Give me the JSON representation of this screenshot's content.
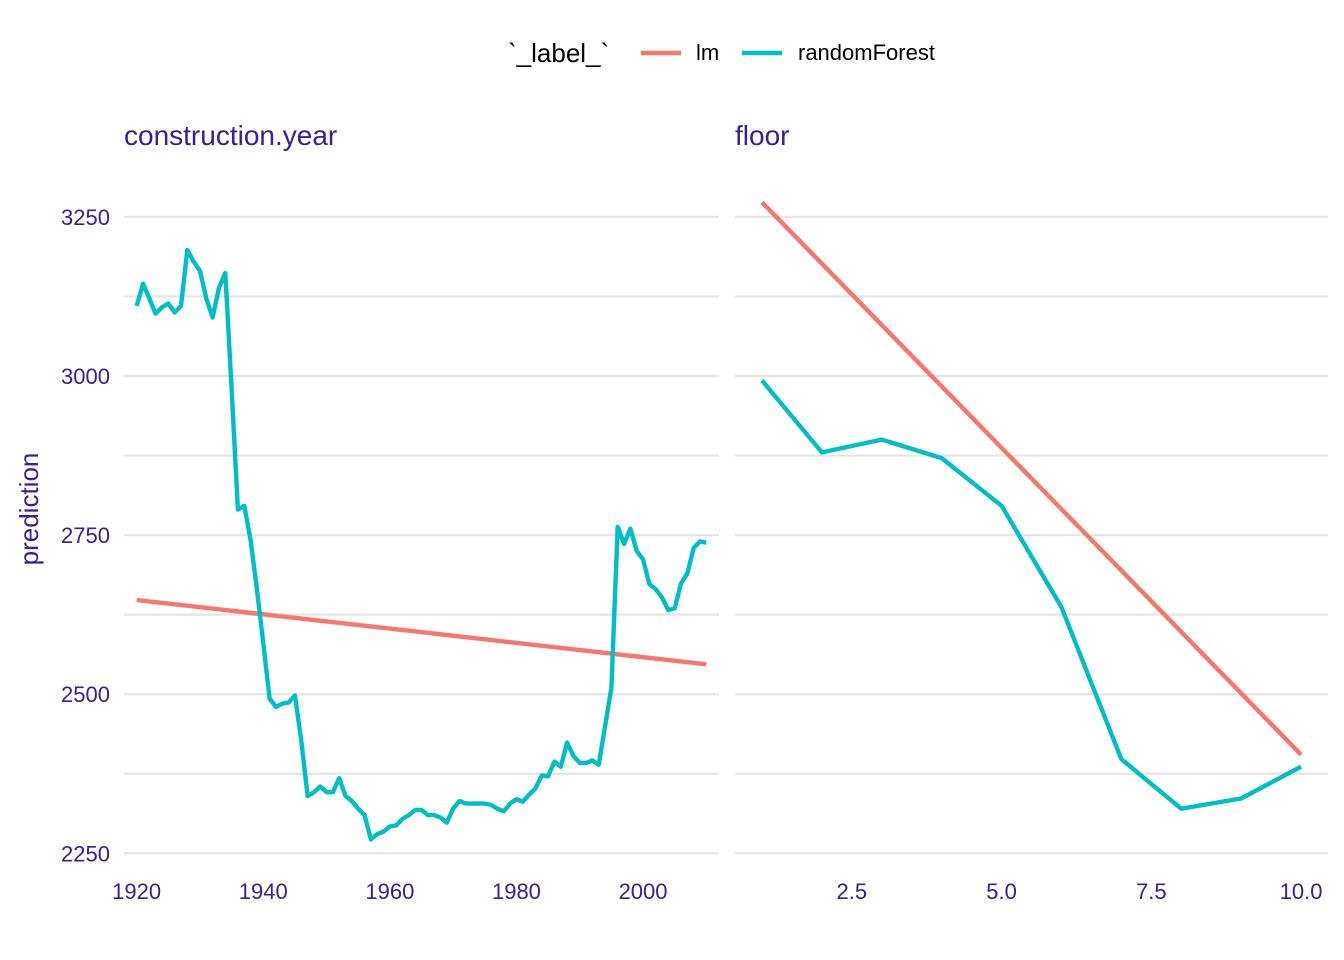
{
  "legend": {
    "title": "`_label_`",
    "position": "top",
    "entries": [
      {
        "name": "lm",
        "color": "#F8766D"
      },
      {
        "name": "randomForest",
        "color": "#00BFC4"
      }
    ]
  },
  "ylabel": "prediction",
  "text_color": "#3A2093",
  "grid": true,
  "chart_data": [
    {
      "type": "line",
      "title": "construction.year",
      "xlabel": "",
      "ylabel": "prediction",
      "xlim": [
        1918,
        2012
      ],
      "ylim": [
        2230,
        3330
      ],
      "x_ticks": [
        1920,
        1940,
        1960,
        1980,
        2000
      ],
      "y_ticks": [
        2250,
        2500,
        2750,
        3000,
        3250
      ],
      "series": [
        {
          "name": "lm",
          "x": [
            1920,
            2010
          ],
          "y": [
            2648,
            2547
          ]
        },
        {
          "name": "randomForest",
          "x": [
            1920,
            1921,
            1922,
            1923,
            1924,
            1925,
            1926,
            1927,
            1928,
            1929,
            1930,
            1931,
            1932,
            1933,
            1934,
            1935,
            1936,
            1937,
            1938,
            1939,
            1940,
            1941,
            1942,
            1943,
            1944,
            1945,
            1946,
            1947,
            1948,
            1949,
            1950,
            1951,
            1952,
            1953,
            1954,
            1955,
            1956,
            1957,
            1958,
            1959,
            1960,
            1961,
            1962,
            1963,
            1964,
            1965,
            1966,
            1967,
            1968,
            1969,
            1970,
            1971,
            1972,
            1973,
            1974,
            1975,
            1976,
            1977,
            1978,
            1979,
            1980,
            1981,
            1982,
            1983,
            1984,
            1985,
            1986,
            1987,
            1988,
            1989,
            1990,
            1991,
            1992,
            1993,
            1994,
            1995,
            1996,
            1997,
            1998,
            1999,
            2000,
            2001,
            2002,
            2003,
            2004,
            2005,
            2006,
            2007,
            2008,
            2009,
            2010
          ],
          "y": [
            3110,
            3145,
            3122,
            3098,
            3108,
            3114,
            3100,
            3110,
            3198,
            3180,
            3165,
            3122,
            3092,
            3138,
            3162,
            2980,
            2790,
            2796,
            2742,
            2665,
            2580,
            2493,
            2480,
            2485,
            2487,
            2498,
            2428,
            2340,
            2346,
            2355,
            2346,
            2346,
            2368,
            2340,
            2332,
            2320,
            2310,
            2272,
            2280,
            2284,
            2292,
            2294,
            2304,
            2310,
            2318,
            2318,
            2310,
            2310,
            2306,
            2298,
            2320,
            2332,
            2328,
            2328,
            2328,
            2328,
            2326,
            2320,
            2316,
            2328,
            2335,
            2331,
            2342,
            2352,
            2372,
            2371,
            2394,
            2386,
            2424,
            2403,
            2392,
            2392,
            2396,
            2389,
            2450,
            2510,
            2763,
            2736,
            2760,
            2725,
            2712,
            2673,
            2665,
            2652,
            2632,
            2635,
            2674,
            2690,
            2730,
            2740,
            2738
          ]
        }
      ]
    },
    {
      "type": "line",
      "title": "floor",
      "xlabel": "",
      "ylabel": "",
      "xlim": [
        0.55,
        10.45
      ],
      "ylim": [
        2230,
        3330
      ],
      "x_ticks": [
        2.5,
        5.0,
        7.5,
        10.0
      ],
      "x_tick_labels": [
        "2.5",
        "5.0",
        "7.5",
        "10.0"
      ],
      "y_ticks": [
        2250,
        2500,
        2750,
        3000,
        3250
      ],
      "series": [
        {
          "name": "lm",
          "x": [
            1,
            10
          ],
          "y": [
            3273,
            2405
          ]
        },
        {
          "name": "randomForest",
          "x": [
            1,
            2,
            3,
            4,
            5,
            6,
            7,
            8,
            9,
            10
          ],
          "y": [
            2993,
            2880,
            2900,
            2871,
            2796,
            2637,
            2398,
            2320,
            2336,
            2386
          ]
        }
      ]
    }
  ]
}
